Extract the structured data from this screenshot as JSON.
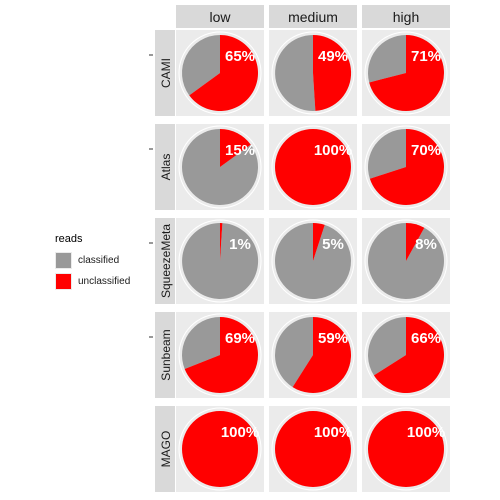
{
  "chart_data": {
    "type": "pie",
    "facet_columns": [
      "low",
      "medium",
      "high"
    ],
    "facet_rows": [
      "CAMI",
      "Atlas",
      "SqueezeMeta",
      "Sunbeam",
      "MAGO"
    ],
    "series_names": [
      "classified",
      "unclassified"
    ],
    "unclassified_percent": [
      [
        65,
        49,
        71
      ],
      [
        15,
        100,
        70
      ],
      [
        1,
        5,
        8
      ],
      [
        69,
        59,
        66
      ],
      [
        100,
        100,
        100
      ]
    ],
    "labels": [
      [
        "65%",
        "49%",
        "71%"
      ],
      [
        "15%",
        "100%",
        "70%"
      ],
      [
        "1%",
        "5%",
        "8%"
      ],
      [
        "69%",
        "59%",
        "66%"
      ],
      [
        "100%",
        "100%",
        "100%"
      ]
    ],
    "colors": {
      "classified": "#999999",
      "unclassified": "#ff0000"
    },
    "legend": {
      "title": "reads",
      "position": "left"
    },
    "grid": true
  }
}
